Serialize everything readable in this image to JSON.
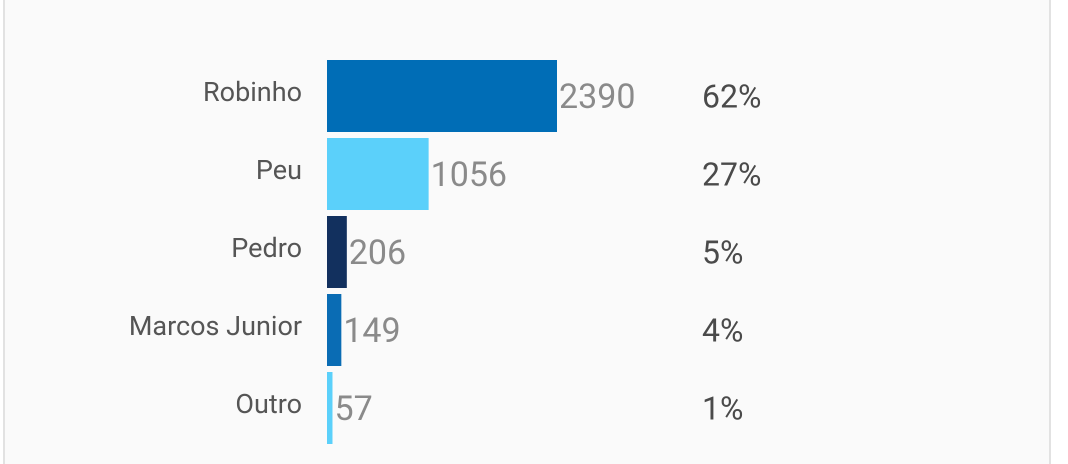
{
  "chart_data": {
    "type": "bar",
    "orientation": "horizontal",
    "categories": [
      "Robinho",
      "Peu",
      "Pedro",
      "Marcos Junior",
      "Outro"
    ],
    "values": [
      2390,
      1056,
      206,
      149,
      57
    ],
    "colors": [
      "#006db6",
      "#5bd0fa",
      "#12305e",
      "#0a6cb4",
      "#5bd0fa"
    ],
    "percent_values": [
      62,
      27,
      5,
      4,
      1
    ],
    "percent_labels": [
      "62%",
      "27%",
      "5%",
      "4%",
      "1%"
    ]
  }
}
